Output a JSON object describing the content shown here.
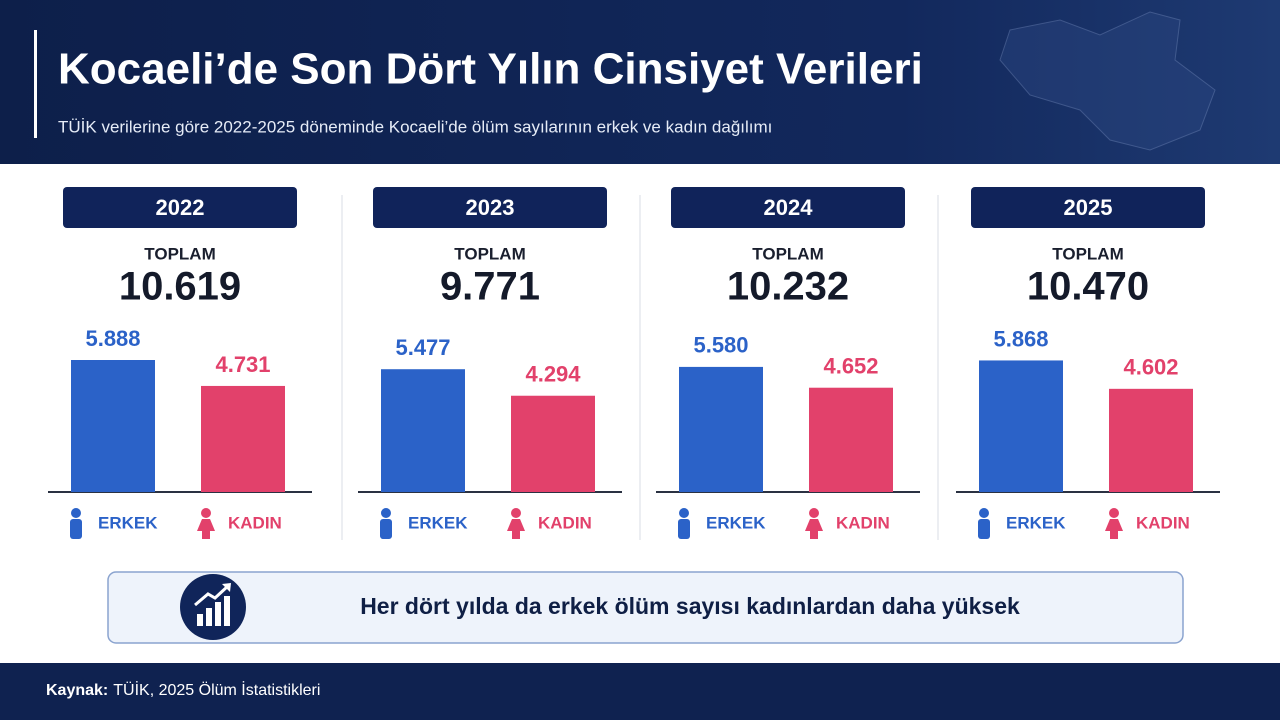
{
  "header": {
    "title": "Kocaeli’de Son Dört Yılın Cinsiyet Verileri",
    "subtitle": "TÜİK verilerine göre 2022-2025 döneminde Kocaeli’de ölüm sayılarının erkek ve kadın dağılımı"
  },
  "chart_data": [
    {
      "type": "bar",
      "title": "2022",
      "subtitle": "TOPLAM",
      "total": "10.619",
      "categories": [
        "ERKEK",
        "KADIN"
      ],
      "values": [
        5888,
        4731
      ],
      "value_labels": [
        "5.888",
        "4.731"
      ],
      "colors": [
        "#2b62c8",
        "#e2416b"
      ]
    },
    {
      "type": "bar",
      "title": "2023",
      "subtitle": "TOPLAM",
      "total": "9.771",
      "categories": [
        "ERKEK",
        "KADIN"
      ],
      "values": [
        5477,
        4294
      ],
      "value_labels": [
        "5.477",
        "4.294"
      ],
      "colors": [
        "#2b62c8",
        "#e2416b"
      ]
    },
    {
      "type": "bar",
      "title": "2024",
      "subtitle": "TOPLAM",
      "total": "10.232",
      "categories": [
        "ERKEK",
        "KADIN"
      ],
      "values": [
        5580,
        4652
      ],
      "value_labels": [
        "5.580",
        "4.652"
      ],
      "colors": [
        "#2b62c8",
        "#e2416b"
      ]
    },
    {
      "type": "bar",
      "title": "2025",
      "subtitle": "TOPLAM",
      "total": "10.470",
      "categories": [
        "ERKEK",
        "KADIN"
      ],
      "values": [
        5868,
        4602
      ],
      "value_labels": [
        "5.868",
        "4.602"
      ],
      "colors": [
        "#2b62c8",
        "#e2416b"
      ]
    }
  ],
  "note": "Her dört yılda da erkek ölüm sayısı kadınlardan daha yüksek",
  "source": {
    "label": "Kaynak:",
    "text": "TÜİK, 2025 Ölüm İstatistikleri"
  }
}
